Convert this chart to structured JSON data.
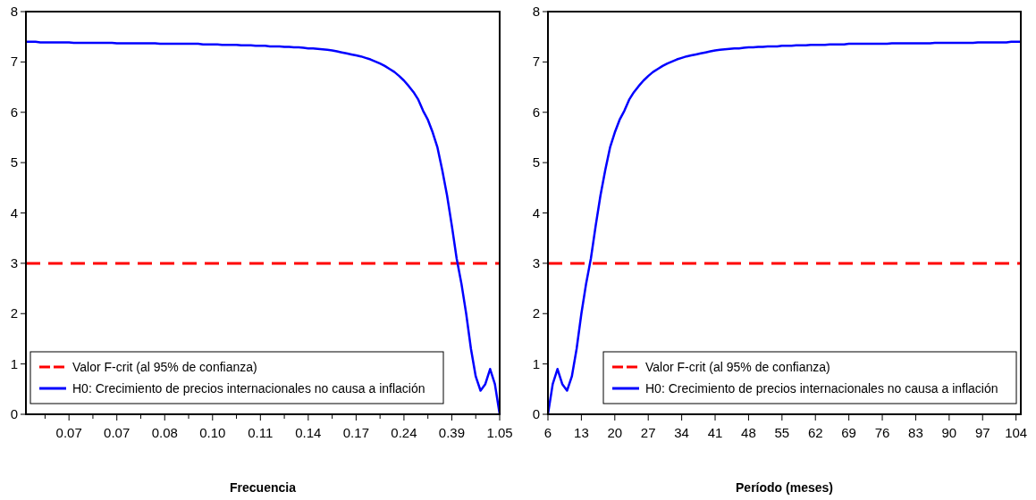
{
  "chart_data": [
    {
      "type": "line",
      "xlabel": "Frecuencia",
      "categories": [
        null,
        null,
        null,
        null,
        null,
        null,
        null,
        null,
        null,
        "0.07",
        null,
        null,
        null,
        null,
        null,
        null,
        null,
        null,
        null,
        "0.07",
        null,
        null,
        null,
        null,
        null,
        null,
        null,
        null,
        null,
        "0.08",
        null,
        null,
        null,
        null,
        null,
        null,
        null,
        null,
        null,
        "0.10",
        null,
        null,
        null,
        null,
        null,
        null,
        null,
        null,
        null,
        "0.11",
        null,
        null,
        null,
        null,
        null,
        null,
        null,
        null,
        null,
        "0.14",
        null,
        null,
        null,
        null,
        null,
        null,
        null,
        null,
        null,
        "0.17",
        null,
        null,
        null,
        null,
        null,
        null,
        null,
        null,
        null,
        "0.24",
        null,
        null,
        null,
        null,
        null,
        null,
        null,
        null,
        null,
        "0.39",
        null,
        null,
        null,
        null,
        null,
        null,
        null,
        null,
        null,
        "1.05"
      ],
      "series": [
        {
          "name": "H0: Crecimiento de precios internacionales no causa a inflación",
          "color": "#0000ff",
          "values": [
            7.4,
            7.4,
            7.4,
            7.39,
            7.39,
            7.39,
            7.39,
            7.39,
            7.39,
            7.39,
            7.38,
            7.38,
            7.38,
            7.38,
            7.38,
            7.38,
            7.38,
            7.38,
            7.38,
            7.37,
            7.37,
            7.37,
            7.37,
            7.37,
            7.37,
            7.37,
            7.37,
            7.37,
            7.36,
            7.36,
            7.36,
            7.36,
            7.36,
            7.36,
            7.36,
            7.36,
            7.36,
            7.35,
            7.35,
            7.35,
            7.35,
            7.34,
            7.34,
            7.34,
            7.34,
            7.33,
            7.33,
            7.33,
            7.32,
            7.32,
            7.32,
            7.31,
            7.31,
            7.31,
            7.3,
            7.3,
            7.29,
            7.29,
            7.28,
            7.27,
            7.27,
            7.26,
            7.25,
            7.24,
            7.23,
            7.21,
            7.19,
            7.17,
            7.15,
            7.13,
            7.11,
            7.08,
            7.05,
            7.01,
            6.97,
            6.92,
            6.86,
            6.8,
            6.72,
            6.63,
            6.52,
            6.4,
            6.25,
            6.03,
            5.85,
            5.6,
            5.3,
            4.85,
            4.35,
            3.75,
            3.1,
            2.6,
            2.0,
            1.3,
            0.75,
            0.47,
            0.6,
            0.9,
            0.6,
            0
          ]
        }
      ],
      "ref_lines": [
        {
          "axis": "y",
          "value": 3,
          "label": "Valor F-crit (al 95% de confianza)",
          "color": "#ff0000",
          "line_style": "dashed"
        }
      ],
      "ylim": [
        0,
        8
      ],
      "yticks": [
        0,
        1,
        2,
        3,
        4,
        5,
        6,
        7,
        8
      ],
      "legend": "bottom left",
      "line_style": "solid",
      "marker": "none"
    },
    {
      "type": "line",
      "xlabel": "Período (meses)",
      "x": [
        6,
        7,
        8,
        9,
        10,
        11,
        12,
        13,
        14,
        15,
        16,
        17,
        18,
        19,
        20,
        21,
        22,
        23,
        24,
        25,
        26,
        27,
        28,
        29,
        30,
        31,
        32,
        33,
        34,
        35,
        36,
        37,
        38,
        39,
        40,
        41,
        42,
        43,
        44,
        45,
        46,
        47,
        48,
        49,
        50,
        51,
        52,
        53,
        54,
        55,
        56,
        57,
        58,
        59,
        60,
        61,
        62,
        63,
        64,
        65,
        66,
        67,
        68,
        69,
        70,
        71,
        72,
        73,
        74,
        75,
        76,
        77,
        78,
        79,
        80,
        81,
        82,
        83,
        84,
        85,
        86,
        87,
        88,
        89,
        90,
        91,
        92,
        93,
        94,
        95,
        96,
        97,
        98,
        99,
        100,
        101,
        102,
        103,
        104,
        105
      ],
      "series": [
        {
          "name": "H0: Crecimiento de precios internacionales no causa a inflación",
          "color": "#0000ff",
          "values": [
            0,
            0.6,
            0.9,
            0.6,
            0.47,
            0.75,
            1.3,
            2.0,
            2.6,
            3.1,
            3.75,
            4.35,
            4.85,
            5.3,
            5.6,
            5.85,
            6.03,
            6.25,
            6.4,
            6.52,
            6.63,
            6.72,
            6.8,
            6.86,
            6.92,
            6.97,
            7.01,
            7.05,
            7.08,
            7.11,
            7.13,
            7.15,
            7.17,
            7.19,
            7.21,
            7.23,
            7.24,
            7.25,
            7.26,
            7.27,
            7.27,
            7.28,
            7.29,
            7.29,
            7.3,
            7.3,
            7.31,
            7.31,
            7.31,
            7.32,
            7.32,
            7.32,
            7.33,
            7.33,
            7.33,
            7.34,
            7.34,
            7.34,
            7.34,
            7.35,
            7.35,
            7.35,
            7.35,
            7.36,
            7.36,
            7.36,
            7.36,
            7.36,
            7.36,
            7.36,
            7.36,
            7.36,
            7.37,
            7.37,
            7.37,
            7.37,
            7.37,
            7.37,
            7.37,
            7.37,
            7.37,
            7.38,
            7.38,
            7.38,
            7.38,
            7.38,
            7.38,
            7.38,
            7.38,
            7.38,
            7.39,
            7.39,
            7.39,
            7.39,
            7.39,
            7.39,
            7.39,
            7.4,
            7.4,
            7.4
          ]
        }
      ],
      "ref_lines": [
        {
          "axis": "y",
          "value": 3,
          "label": "Valor F-crit (al 95% de confianza)",
          "color": "#ff0000",
          "line_style": "dashed"
        }
      ],
      "xlim": [
        6,
        105
      ],
      "xticks": [
        6,
        13,
        20,
        27,
        34,
        41,
        48,
        55,
        62,
        69,
        76,
        83,
        90,
        97,
        104
      ],
      "ylim": [
        0,
        8
      ],
      "yticks": [
        0,
        1,
        2,
        3,
        4,
        5,
        6,
        7,
        8
      ],
      "legend": "bottom right",
      "line_style": "solid",
      "marker": "none"
    }
  ]
}
